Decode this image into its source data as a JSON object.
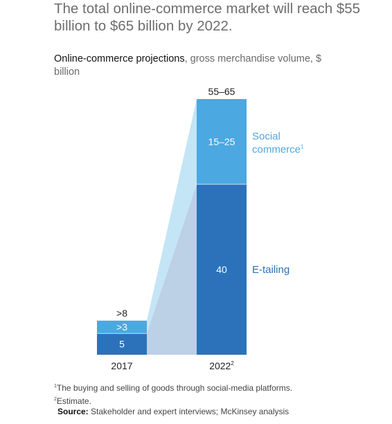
{
  "headline": "The total online-commerce market will reach $55 billion to $65 billion by 2022.",
  "subtitle": {
    "bold": "Online-commerce projections",
    "rest": ", gross merchandise volume, $ billion"
  },
  "colors": {
    "e_tailing": "#2b72ba",
    "social_commerce": "#4ba8e0",
    "bridge_dark": "#bcd0e6",
    "bridge_light": "#c4e5f5",
    "label_dark": "#1e1e1e",
    "social_label": "#4ba8e0",
    "etail_label": "#2b72ba"
  },
  "chart_data": {
    "type": "bar",
    "stacked": true,
    "categories": [
      "2017",
      "2022"
    ],
    "category_superscripts": [
      "",
      "2"
    ],
    "series": [
      {
        "name": "E-tailing",
        "values": [
          5,
          40
        ],
        "value_labels": [
          "5",
          "40"
        ]
      },
      {
        "name": "Social commerce",
        "name_lines": [
          "Social",
          "commerce"
        ],
        "superscript": "1",
        "values": [
          3,
          20
        ],
        "value_labels": [
          ">3",
          "15–25"
        ]
      }
    ],
    "totals": [
      ">8",
      "55–65"
    ],
    "ylim": [
      0,
      60
    ]
  },
  "footnotes": {
    "note1_mark": "1",
    "note1": "The buying and selling of goods through social-media platforms.",
    "note2_mark": "2",
    "note2": "Estimate.",
    "source_label": "Source:",
    "source_text": " Stakeholder and expert interviews; McKinsey analysis"
  }
}
